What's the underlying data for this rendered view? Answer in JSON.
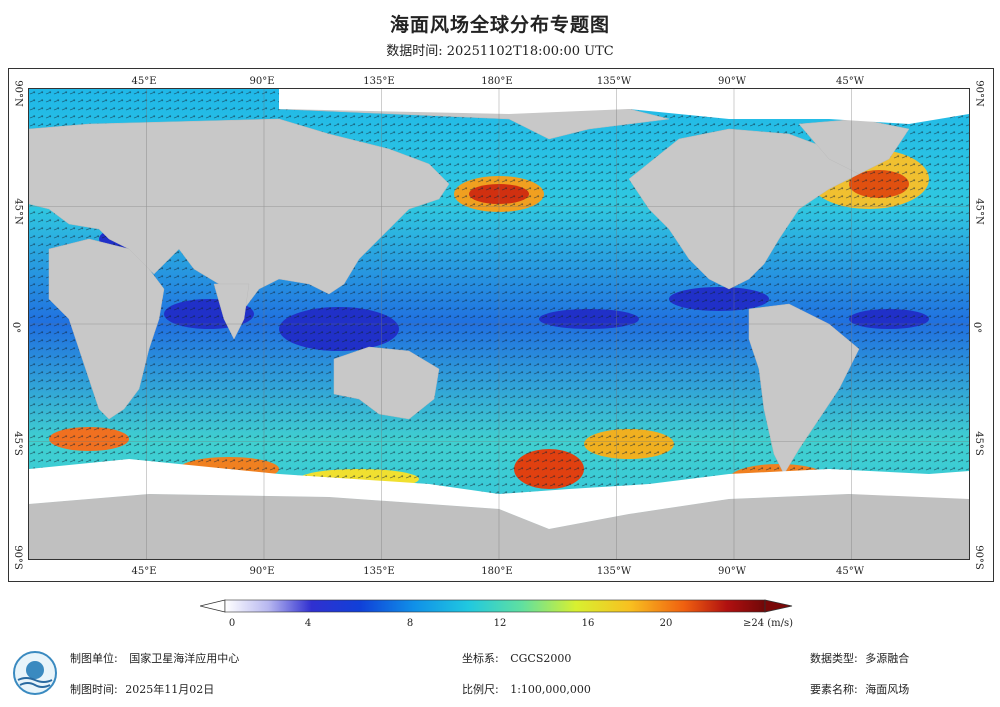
{
  "title": "海面风场全球分布专题图",
  "subtitle": "数据时间: 20251102T18:00:00 UTC",
  "map": {
    "lon_labels": [
      "45°E",
      "90°E",
      "135°E",
      "180°E",
      "135°W",
      "90°W",
      "45°W"
    ],
    "lat_labels": [
      "90°N",
      "45°N",
      "0°",
      "45°S",
      "90°S"
    ],
    "colors": {
      "land": "#c8c8c8",
      "ice": "#ffffff",
      "ocean_low": "#1a30c8",
      "ocean_mid": "#20c0e0",
      "ocean_high": "#e0e030",
      "ocean_max": "#c01010"
    }
  },
  "colorbar": {
    "labels": [
      "0",
      "4",
      "8",
      "12",
      "16",
      "20",
      "≥24 (m/s)"
    ],
    "values": [
      0,
      4,
      8,
      12,
      16,
      20,
      24
    ],
    "unit": "m/s",
    "colors": [
      "#ffffff",
      "#b8b8f0",
      "#5858e0",
      "#1010c0",
      "#1060e0",
      "#10b0e8",
      "#40e0d0",
      "#a0f060",
      "#f0f020",
      "#f8a020",
      "#e03010",
      "#a01010",
      "#600808"
    ]
  },
  "footer": {
    "producer_label": "制图单位:",
    "producer": "国家卫星海洋应用中心",
    "date_label": "制图时间:",
    "date": "2025年11月02日",
    "crs_label": "坐标系:",
    "crs": "CGCS2000",
    "scale_label": "比例尺:",
    "scale": "1:100,000,000",
    "datatype_label": "数据类型:",
    "datatype": "多源融合",
    "element_label": "要素名称:",
    "element": "海面风场"
  }
}
